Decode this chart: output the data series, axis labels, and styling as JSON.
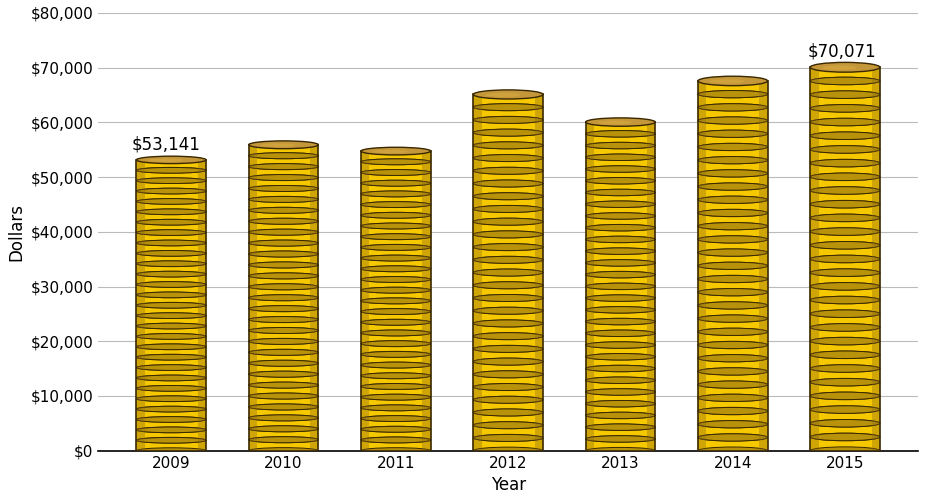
{
  "years": [
    2009,
    2010,
    2011,
    2012,
    2013,
    2014,
    2015
  ],
  "values": [
    53141,
    55902,
    54749,
    65102,
    60054,
    67572,
    70071
  ],
  "ylim": [
    0,
    80000
  ],
  "yticks": [
    0,
    10000,
    20000,
    30000,
    40000,
    50000,
    60000,
    70000,
    80000
  ],
  "ytick_labels": [
    "$0",
    "$10,000",
    "$20,000",
    "$30,000",
    "$40,000",
    "$50,000",
    "$60,000",
    "$70,000",
    "$80,000"
  ],
  "xlabel": "Year",
  "ylabel": "Dollars",
  "coin_yellow": "#F5C800",
  "coin_yellow2": "#E8B800",
  "coin_dark_band": "#3a2800",
  "coin_top_brown": "#C4973A",
  "coin_top_highlight": "#D4A840",
  "coin_shadow": "#B8920A",
  "background_color": "#ffffff",
  "grid_color": "#bbbbbb",
  "bar_width": 0.62,
  "n_coins": 28,
  "label_fontsize": 12,
  "axis_fontsize": 12,
  "tick_fontsize": 11
}
